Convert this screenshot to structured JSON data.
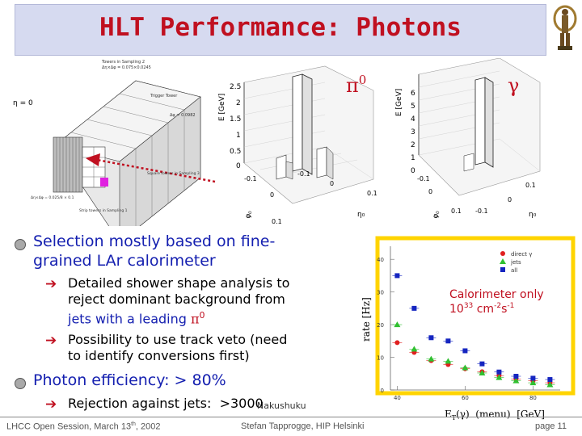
{
  "slide": {
    "title": "HLT Performance: Photons",
    "logo_icon": "atlas-figure-icon"
  },
  "calorimeter_diagram": {
    "labels": {
      "top_sampling": "Towers in Sampling 2",
      "top_sampling_detail": "Δη×Δφ = 0.075×0.0245",
      "trigger_tower": "Trigger Tower",
      "trigger_tower_detail": "Δφ = 0.0982",
      "eta_zero": "η = 0",
      "sampling3": "Square towers in Sampling 3",
      "strip_label": "Strip towers in Sampling 1",
      "strip_detail": "Δη×Δφ = 0.025/8 × 0.1"
    }
  },
  "lego_plots": [
    {
      "name": "pi0",
      "symbol": "π",
      "symbol_sup": "0",
      "zlabel": "E [GeV]",
      "zticks": [
        "2.5",
        "2",
        "1.5",
        "1",
        "0.5",
        "0"
      ],
      "xlabel": "η₀",
      "ylabel": "φ₀",
      "xticks": [
        "-0.1",
        "0",
        "0.1"
      ],
      "yticks": [
        "-0.1",
        "0",
        "0.1"
      ]
    },
    {
      "name": "gamma",
      "symbol": "γ",
      "zlabel": "E [GeV]",
      "zticks": [
        "6",
        "5",
        "4",
        "3",
        "2",
        "1",
        "0"
      ],
      "xlabel": "η₀",
      "ylabel": "φ₀",
      "xticks": [
        "-0.1",
        "0",
        "0.1"
      ],
      "yticks": [
        "-0.1",
        "0",
        "0.1"
      ]
    }
  ],
  "bullets": [
    {
      "text_line1": "Selection mostly based on fine-",
      "text_line2": "grained LAr calorimeter",
      "subs": [
        {
          "line1": "Detailed shower shape analysis to",
          "line2": "reject dominant background from",
          "line3_prefix": "jets with a leading ",
          "line3_symbol": "π",
          "line3_sup": "0"
        },
        {
          "line1": "Possibility to use track veto (need",
          "line2": "to identify conversions first)"
        }
      ]
    },
    {
      "text_line1": "Photon efficiency: > 80%",
      "subs": [
        {
          "line1": "Rejection against jets:  >3000",
          "overlay": "Nakushuku"
        }
      ]
    }
  ],
  "chart_data": {
    "type": "scatter",
    "title": "",
    "ylabel": "rate [Hz]",
    "xlabel": "E",
    "xlabel_sub": "T",
    "xlabel_rest": "(γ)  (menu)  [GeV]",
    "xlim": [
      38,
      88
    ],
    "ylim": [
      0,
      44
    ],
    "xticks": [
      40,
      60,
      80
    ],
    "yticks": [
      0,
      10,
      20,
      30,
      40
    ],
    "annotation_line1": "Calorimeter only",
    "annotation_line2_base": "10",
    "annotation_line2_exp": "33",
    "annotation_line2_mid": " cm",
    "annotation_line2_exp2": "-2",
    "annotation_line2_s": "s",
    "annotation_line2_exp3": "-1",
    "legend": [
      "direct γ",
      "jets",
      "all"
    ],
    "legend_position": "top-right",
    "series": [
      {
        "name": "direct γ",
        "color": "#e02020",
        "marker": "circle",
        "x": [
          40,
          45,
          50,
          55,
          60,
          65,
          70,
          75,
          80,
          85
        ],
        "y": [
          14.5,
          11.5,
          9,
          7.8,
          6.5,
          5.6,
          4.4,
          3.4,
          2.8,
          2.2
        ]
      },
      {
        "name": "jets",
        "color": "#30c030",
        "marker": "triangle",
        "x": [
          40,
          45,
          50,
          55,
          60,
          65,
          70,
          75,
          80,
          85
        ],
        "y": [
          20,
          12.5,
          9.5,
          8.8,
          6.8,
          5.2,
          3.8,
          2.8,
          2.2,
          1.6
        ]
      },
      {
        "name": "all",
        "color": "#1525c0",
        "marker": "square",
        "x": [
          40,
          45,
          50,
          55,
          60,
          65,
          70,
          75,
          80,
          85
        ],
        "y": [
          35,
          25,
          16,
          15,
          12,
          8,
          5.5,
          4.2,
          3.6,
          3.2
        ]
      }
    ]
  },
  "footer": {
    "left": "LHCC Open Session, March 13",
    "left_sup": "th",
    "left_end": ", 2002",
    "center": "Stefan Tapprogge, HIP Helsinki",
    "right": "page 11"
  },
  "colors": {
    "title_red": "#c01020",
    "text_blue": "#1520b0",
    "title_bg": "#d6daf0"
  }
}
